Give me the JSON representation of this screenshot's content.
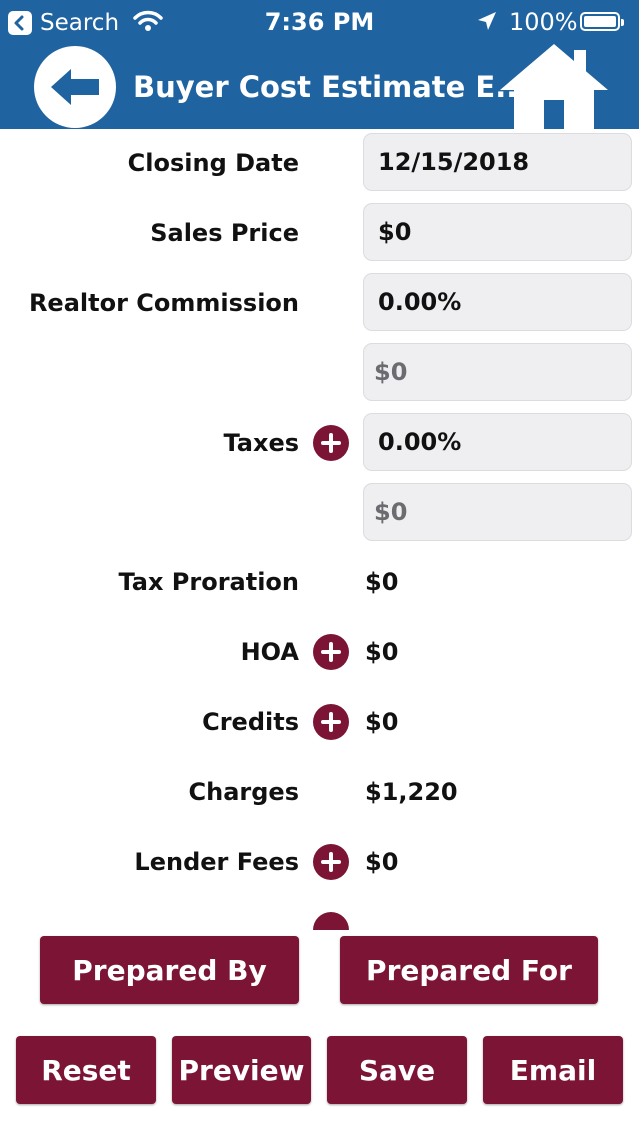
{
  "status_bar": {
    "back_app": "Search",
    "time": "7:36 PM",
    "battery": "100%"
  },
  "nav": {
    "title": "Buyer Cost Estimate E..."
  },
  "form": {
    "closing_date": {
      "label": "Closing Date",
      "value": "12/15/2018"
    },
    "sales_price": {
      "label": "Sales Price",
      "value": "$0"
    },
    "realtor_commission": {
      "label": "Realtor Commission",
      "value": "0.00%",
      "amount": "$0"
    },
    "taxes": {
      "label": "Taxes",
      "value": "0.00%",
      "amount": "$0"
    },
    "tax_proration": {
      "label": "Tax Proration",
      "value": "$0"
    },
    "hoa": {
      "label": "HOA",
      "value": "$0"
    },
    "credits": {
      "label": "Credits",
      "value": "$0"
    },
    "charges": {
      "label": "Charges",
      "value": "$1,220"
    },
    "lender_fees": {
      "label": "Lender Fees",
      "value": "$0"
    }
  },
  "buttons": {
    "prepared_by": "Prepared By",
    "prepared_for": "Prepared For",
    "reset": "Reset",
    "preview": "Preview",
    "save": "Save",
    "email": "Email"
  },
  "colors": {
    "header": "#1f63a0",
    "accent": "#7c1535",
    "field_bg": "#efeff1"
  }
}
